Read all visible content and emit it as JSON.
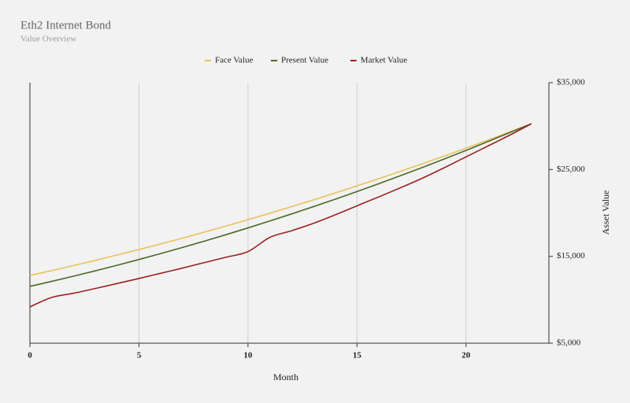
{
  "chart_data": {
    "type": "line",
    "title": "Eth2 Internet Bond",
    "subtitle": "Value Overview",
    "x_label": "Month",
    "y_label": "Asset Value",
    "x": [
      0,
      1,
      2,
      3,
      4,
      5,
      6,
      7,
      8,
      9,
      10,
      11,
      12,
      13,
      14,
      15,
      16,
      17,
      18,
      19,
      20,
      21,
      22,
      23
    ],
    "xlim": [
      0,
      23.8
    ],
    "xticks": [
      0,
      5,
      10,
      15,
      20
    ],
    "ylim": [
      5000,
      35000
    ],
    "yticks": [
      {
        "value": 5000,
        "label": "$5,000"
      },
      {
        "value": 15000,
        "label": "$15,000"
      },
      {
        "value": 25000,
        "label": "$25,000"
      },
      {
        "value": 35000,
        "label": "$35,000"
      }
    ],
    "y_axis_side": "right",
    "grid": "x",
    "series": [
      {
        "name": "Face Value",
        "color": "#e8c15a",
        "values": [
          12800,
          13360,
          13938,
          14535,
          15149,
          15782,
          16433,
          17102,
          17790,
          18495,
          19219,
          19961,
          20721,
          21499,
          22296,
          23111,
          23944,
          24795,
          25664,
          26552,
          27458,
          28382,
          29324,
          30270
        ]
      },
      {
        "name": "Present Value",
        "color": "#4a6a2a",
        "values": [
          11545,
          12119,
          12715,
          13333,
          13973,
          14635,
          15318,
          16024,
          16752,
          17502,
          18273,
          19067,
          19882,
          20720,
          21579,
          22461,
          23364,
          24290,
          25237,
          26207,
          27198,
          28212,
          29247,
          30270
        ]
      },
      {
        "name": "Market Value",
        "color": "#9b2222",
        "values": [
          9180,
          10270,
          10750,
          11300,
          11870,
          12450,
          13050,
          13650,
          14280,
          14900,
          15550,
          17180,
          17950,
          18800,
          19780,
          20820,
          21850,
          22900,
          24000,
          25200,
          26450,
          27700,
          28950,
          30270
        ]
      }
    ]
  }
}
